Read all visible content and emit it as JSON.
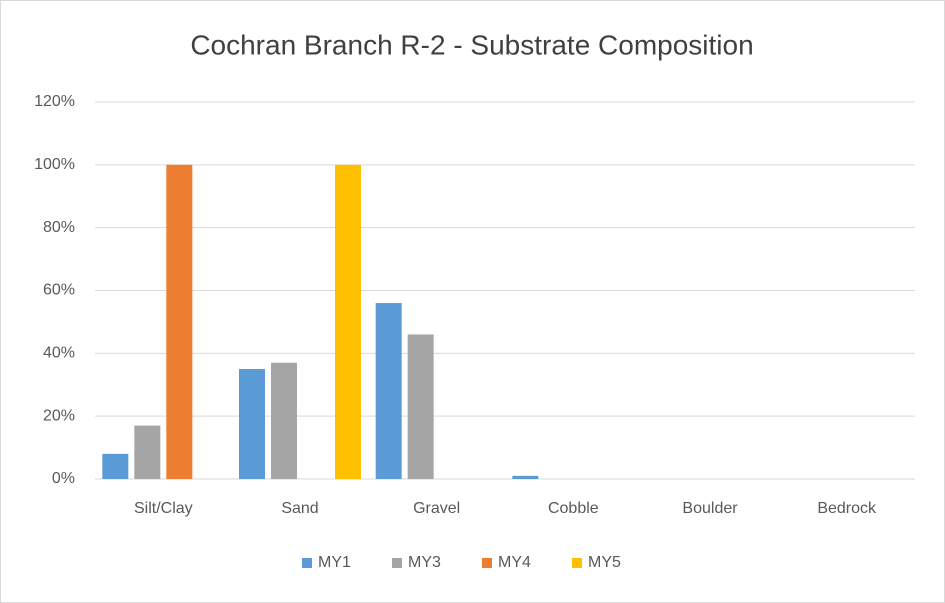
{
  "chart_data": {
    "type": "bar",
    "title": "Cochran Branch R-2 - Substrate Composition",
    "categories": [
      "Silt/Clay",
      "Sand",
      "Gravel",
      "Cobble",
      "Boulder",
      "Bedrock"
    ],
    "series": [
      {
        "name": "MY1",
        "color": "#5b9bd5",
        "values": [
          8,
          35,
          56,
          1,
          0,
          0
        ]
      },
      {
        "name": "MY3",
        "color": "#a5a5a5",
        "values": [
          17,
          37,
          46,
          0,
          0,
          0
        ]
      },
      {
        "name": "MY4",
        "color": "#ed7d31",
        "values": [
          100,
          0,
          0,
          0,
          0,
          0
        ]
      },
      {
        "name": "MY5",
        "color": "#ffc000",
        "values": [
          0,
          100,
          0,
          0,
          0,
          0
        ]
      }
    ],
    "ylim": [
      0,
      120
    ],
    "yticks": [
      {
        "value": 0,
        "label": "0%"
      },
      {
        "value": 20,
        "label": "20%"
      },
      {
        "value": 40,
        "label": "40%"
      },
      {
        "value": 60,
        "label": "60%"
      },
      {
        "value": 80,
        "label": "80%"
      },
      {
        "value": 100,
        "label": "100%"
      },
      {
        "value": 120,
        "label": "120%"
      }
    ],
    "grid": true,
    "legend": "bottom"
  }
}
